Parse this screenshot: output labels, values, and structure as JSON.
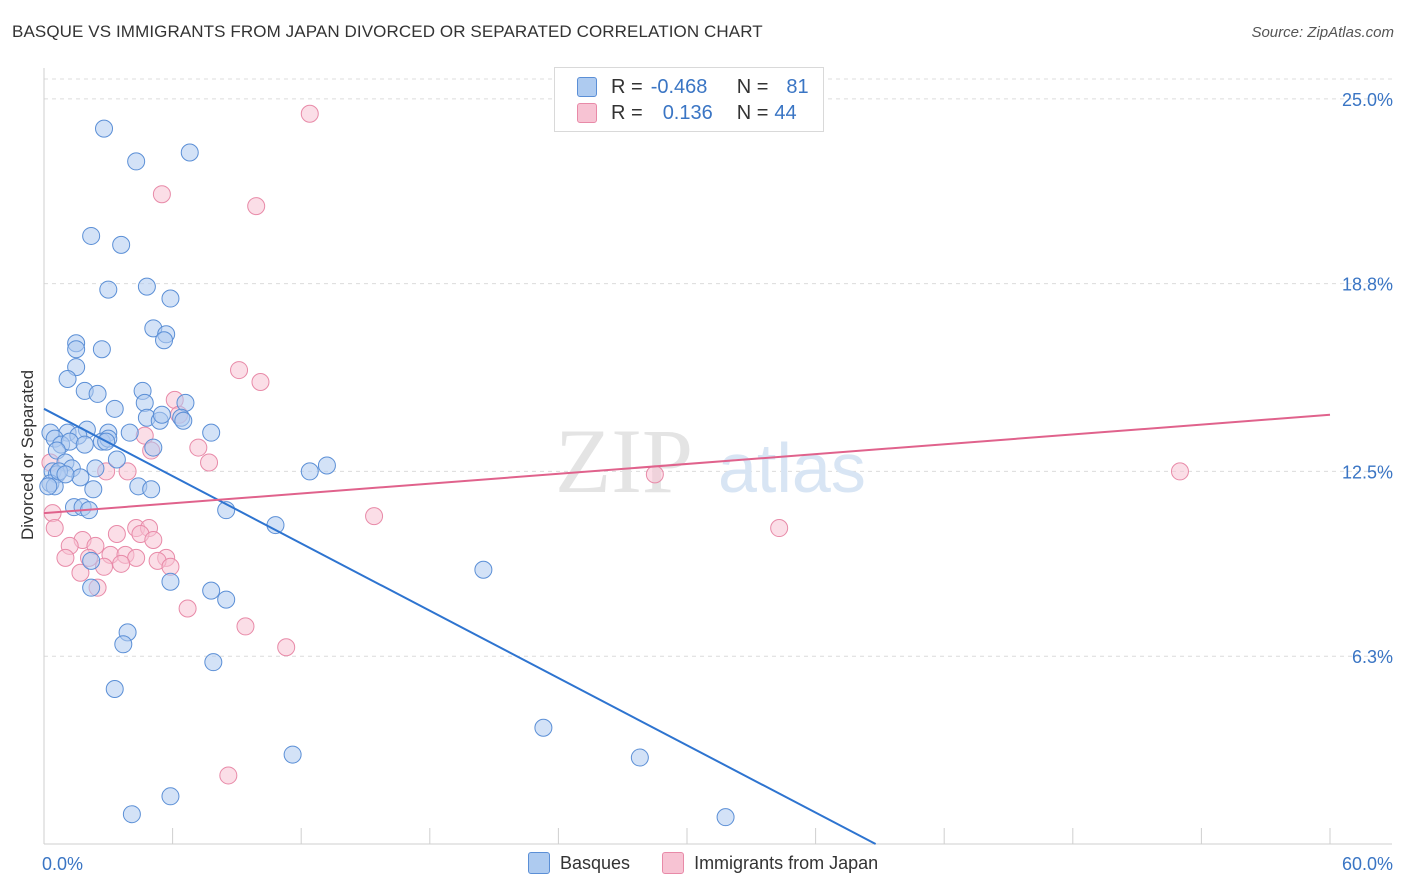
{
  "title": "BASQUE VS IMMIGRANTS FROM JAPAN DIVORCED OR SEPARATED CORRELATION CHART",
  "source": "Source: ZipAtlas.com",
  "watermark": {
    "zip": "ZIP",
    "atlas": "atlas"
  },
  "legend_top": {
    "basques": {
      "r_label": "R =",
      "r_value": "-0.468",
      "n_label": "N =",
      "n_value": "81"
    },
    "japan": {
      "r_label": "R =",
      "r_value": "0.136",
      "n_label": "N =",
      "n_value": "44"
    }
  },
  "colors": {
    "blue_fill": "#aecbf0",
    "blue_stroke": "#5b8fd6",
    "blue_line": "#2e74d0",
    "pink_fill": "#f7c3d3",
    "pink_stroke": "#e88aa8",
    "pink_line": "#e0628c",
    "tick_text": "#3a75c4",
    "grid": "#dcdcdc"
  },
  "chart_data": {
    "type": "scatter",
    "title": "BASQUE VS IMMIGRANTS FROM JAPAN DIVORCED OR SEPARATED CORRELATION CHART",
    "xlabel": "",
    "ylabel": "Divorced or Separated",
    "xlim": [
      0,
      60
    ],
    "ylim": [
      0,
      25.9
    ],
    "x_tick_labels": [
      "0.0%",
      "60.0%"
    ],
    "y_ticks": [
      {
        "value": 6.3,
        "label": "6.3%"
      },
      {
        "value": 12.5,
        "label": "12.5%"
      },
      {
        "value": 18.8,
        "label": "18.8%"
      },
      {
        "value": 25.0,
        "label": "25.0%"
      }
    ],
    "legend": [
      "Basques",
      "Immigrants from Japan"
    ],
    "series": [
      {
        "name": "Basques",
        "r": -0.468,
        "n": 81,
        "trend": [
          [
            0,
            14.6
          ],
          [
            38.8,
            0
          ]
        ],
        "points": [
          [
            2.8,
            24.0
          ],
          [
            4.3,
            22.9
          ],
          [
            6.8,
            23.2
          ],
          [
            2.2,
            20.4
          ],
          [
            3.6,
            20.1
          ],
          [
            3.0,
            18.6
          ],
          [
            4.8,
            18.7
          ],
          [
            5.9,
            18.3
          ],
          [
            5.1,
            17.3
          ],
          [
            5.7,
            17.1
          ],
          [
            5.6,
            16.9
          ],
          [
            1.5,
            16.8
          ],
          [
            1.5,
            16.6
          ],
          [
            2.7,
            16.6
          ],
          [
            1.5,
            16.0
          ],
          [
            1.1,
            15.6
          ],
          [
            1.9,
            15.2
          ],
          [
            2.5,
            15.1
          ],
          [
            3.3,
            14.6
          ],
          [
            4.6,
            15.2
          ],
          [
            4.7,
            14.8
          ],
          [
            6.6,
            14.8
          ],
          [
            4.8,
            14.3
          ],
          [
            5.4,
            14.2
          ],
          [
            6.4,
            14.3
          ],
          [
            6.5,
            14.2
          ],
          [
            2.0,
            13.9
          ],
          [
            3.0,
            13.8
          ],
          [
            0.3,
            13.8
          ],
          [
            1.1,
            13.8
          ],
          [
            0.5,
            13.6
          ],
          [
            1.6,
            13.7
          ],
          [
            0.8,
            13.4
          ],
          [
            1.2,
            13.5
          ],
          [
            2.7,
            13.5
          ],
          [
            3.0,
            13.6
          ],
          [
            5.1,
            13.3
          ],
          [
            7.8,
            13.8
          ],
          [
            4.0,
            13.8
          ],
          [
            0.6,
            13.2
          ],
          [
            1.0,
            12.8
          ],
          [
            1.3,
            12.6
          ],
          [
            2.4,
            12.6
          ],
          [
            3.4,
            12.9
          ],
          [
            0.4,
            12.5
          ],
          [
            0.6,
            12.4
          ],
          [
            1.7,
            12.3
          ],
          [
            12.4,
            12.5
          ],
          [
            13.2,
            12.7
          ],
          [
            0.3,
            12.1
          ],
          [
            0.5,
            12.0
          ],
          [
            4.4,
            12.0
          ],
          [
            5.0,
            11.9
          ],
          [
            2.3,
            11.9
          ],
          [
            1.4,
            11.3
          ],
          [
            1.8,
            11.3
          ],
          [
            2.1,
            11.2
          ],
          [
            8.5,
            11.2
          ],
          [
            10.8,
            10.7
          ],
          [
            2.2,
            9.5
          ],
          [
            20.5,
            9.2
          ],
          [
            5.9,
            8.8
          ],
          [
            7.8,
            8.5
          ],
          [
            8.5,
            8.2
          ],
          [
            2.2,
            8.6
          ],
          [
            3.9,
            7.1
          ],
          [
            3.7,
            6.7
          ],
          [
            7.9,
            6.1
          ],
          [
            3.3,
            5.2
          ],
          [
            23.3,
            3.9
          ],
          [
            11.6,
            3.0
          ],
          [
            27.8,
            2.9
          ],
          [
            5.9,
            1.6
          ],
          [
            4.1,
            1.0
          ],
          [
            31.8,
            0.9
          ],
          [
            0.2,
            12.0
          ],
          [
            1.9,
            13.4
          ],
          [
            0.7,
            12.5
          ],
          [
            2.9,
            13.5
          ],
          [
            5.5,
            14.4
          ],
          [
            1.0,
            12.4
          ]
        ]
      },
      {
        "name": "Immigrants from Japan",
        "r": 0.136,
        "n": 44,
        "trend": [
          [
            0,
            11.1
          ],
          [
            60,
            14.4
          ]
        ],
        "points": [
          [
            12.4,
            24.5
          ],
          [
            5.5,
            21.8
          ],
          [
            9.9,
            21.4
          ],
          [
            9.1,
            15.9
          ],
          [
            10.1,
            15.5
          ],
          [
            6.1,
            14.9
          ],
          [
            6.3,
            14.4
          ],
          [
            4.7,
            13.7
          ],
          [
            7.2,
            13.3
          ],
          [
            5.0,
            13.2
          ],
          [
            7.7,
            12.8
          ],
          [
            2.9,
            12.5
          ],
          [
            3.9,
            12.5
          ],
          [
            28.5,
            12.4
          ],
          [
            53.0,
            12.5
          ],
          [
            0.3,
            12.8
          ],
          [
            0.4,
            11.1
          ],
          [
            15.4,
            11.0
          ],
          [
            34.3,
            10.6
          ],
          [
            0.5,
            10.6
          ],
          [
            3.4,
            10.4
          ],
          [
            4.3,
            10.6
          ],
          [
            4.9,
            10.6
          ],
          [
            1.8,
            10.2
          ],
          [
            1.2,
            10.0
          ],
          [
            4.5,
            10.4
          ],
          [
            5.1,
            10.2
          ],
          [
            2.4,
            10.0
          ],
          [
            3.1,
            9.7
          ],
          [
            3.8,
            9.7
          ],
          [
            1.0,
            9.6
          ],
          [
            2.1,
            9.6
          ],
          [
            4.3,
            9.6
          ],
          [
            5.7,
            9.6
          ],
          [
            3.6,
            9.4
          ],
          [
            5.3,
            9.5
          ],
          [
            5.9,
            9.3
          ],
          [
            2.8,
            9.3
          ],
          [
            1.7,
            9.1
          ],
          [
            2.5,
            8.6
          ],
          [
            6.7,
            7.9
          ],
          [
            9.4,
            7.3
          ],
          [
            11.3,
            6.6
          ],
          [
            8.6,
            2.3
          ]
        ]
      }
    ]
  }
}
